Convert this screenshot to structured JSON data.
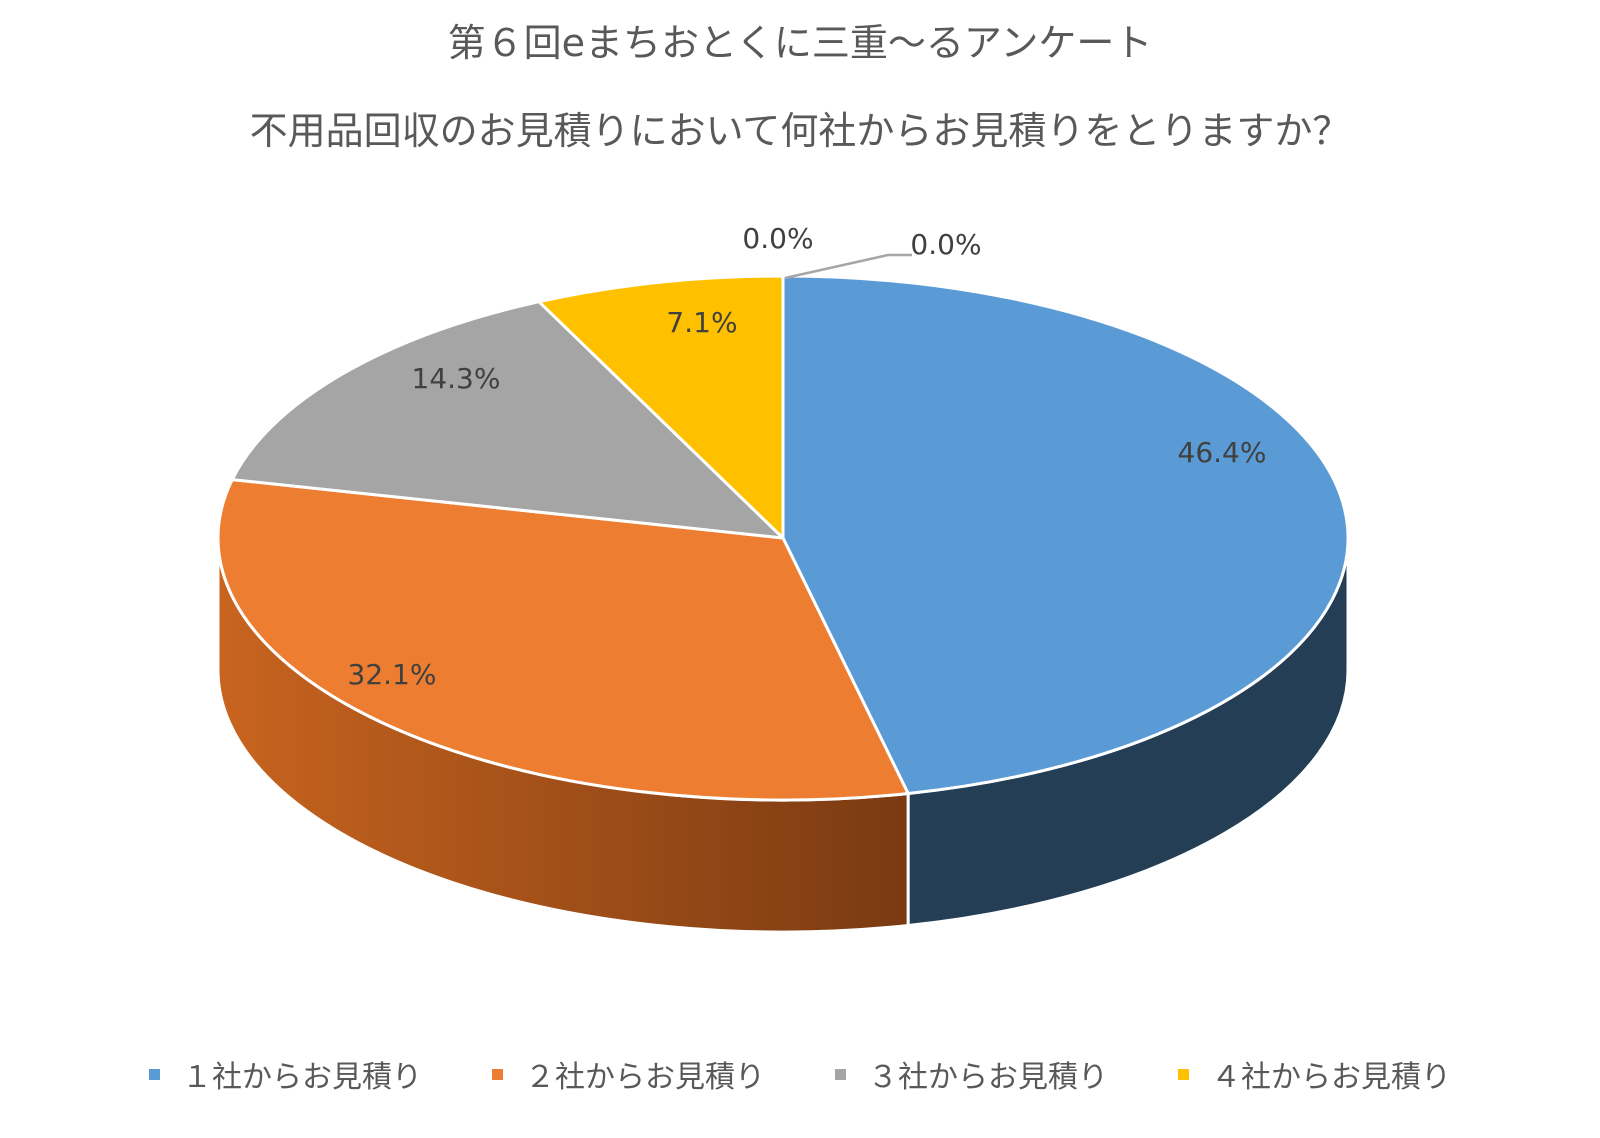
{
  "title": "第６回eまちおとくに三重～るアンケート",
  "subtitle": "不用品回収のお見積りにおいて何社からお見積りをとりますか？",
  "chart_data": {
    "type": "pie",
    "title": "第６回eまちおとくに三重～るアンケート",
    "subtitle": "不用品回収のお見積りにおいて何社からお見積りをとりますか？",
    "categories": [
      "１社からお見積り",
      "２社からお見積り",
      "３社からお見積り",
      "４社からお見積り",
      "",
      ""
    ],
    "values": [
      46.4,
      32.1,
      14.3,
      7.1,
      0.0,
      0.0
    ],
    "labels": [
      "46.4%",
      "32.1%",
      "14.3%",
      "7.1%",
      "0.0%",
      "0.0%"
    ],
    "colors": [
      "#5B9BD5",
      "#ED7D31",
      "#A5A5A5",
      "#FFC000",
      "#4472C4",
      "#70AD47"
    ],
    "legend": "bottom",
    "style": "3d-pie"
  },
  "legend": [
    {
      "label": "１社からお見積り",
      "color": "#5B9BD5"
    },
    {
      "label": "２社からお見積り",
      "color": "#ED7D31"
    },
    {
      "label": "３社からお見積り",
      "color": "#A5A5A5"
    },
    {
      "label": "４社からお見積り",
      "color": "#FFC000"
    }
  ]
}
